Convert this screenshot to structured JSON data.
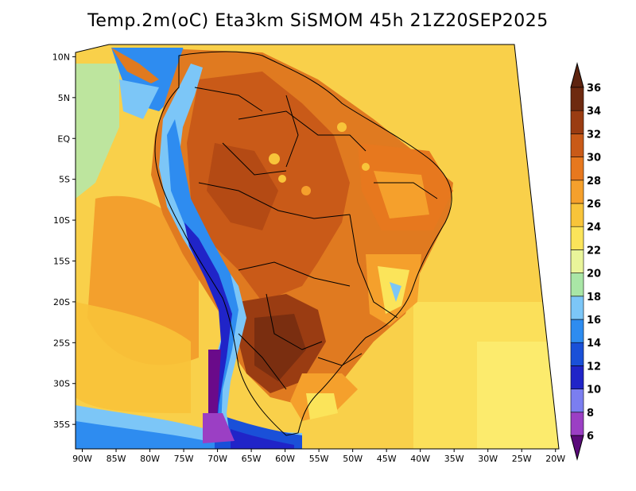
{
  "title": "Temp.2m(oC) Eta3km SiSMOM 45h 21Z20SEP2025",
  "map": {
    "lat_labels": [
      "10N",
      "5N",
      "EQ",
      "5S",
      "10S",
      "15S",
      "20S",
      "25S",
      "30S",
      "35S"
    ],
    "lat_values": [
      10,
      5,
      0,
      -5,
      -10,
      -15,
      -20,
      -25,
      -30,
      -35
    ],
    "lon_labels": [
      "90W",
      "85W",
      "80W",
      "75W",
      "70W",
      "65W",
      "60W",
      "55W",
      "50W",
      "45W",
      "40W",
      "35W",
      "30W",
      "25W",
      "20W"
    ],
    "lon_values": [
      -90,
      -85,
      -80,
      -75,
      -70,
      -65,
      -60,
      -55,
      -50,
      -45,
      -40,
      -35,
      -30,
      -25,
      -20
    ],
    "lat_range": [
      -38,
      11.5
    ],
    "lon_range": [
      -91,
      -19.5
    ]
  },
  "colorbar": {
    "levels": [
      6,
      8,
      10,
      12,
      14,
      16,
      18,
      20,
      22,
      24,
      26,
      28,
      30,
      32,
      34,
      36
    ],
    "labels": [
      "6",
      "8",
      "10",
      "12",
      "14",
      "16",
      "18",
      "20",
      "22",
      "24",
      "26",
      "28",
      "30",
      "32",
      "34",
      "36"
    ],
    "colors": [
      "#6a0a8a",
      "#9b3fc4",
      "#7b7ef0",
      "#2024c8",
      "#1a50d8",
      "#2e8cf0",
      "#7cc6f7",
      "#a9e6a6",
      "#e9f59a",
      "#fbe45a",
      "#f8c43a",
      "#f5a02c",
      "#e7781e",
      "#c95a18",
      "#9a3c12",
      "#6e2a10"
    ],
    "under_color": "#5a0a7a",
    "over_color": "#5e2410"
  }
}
